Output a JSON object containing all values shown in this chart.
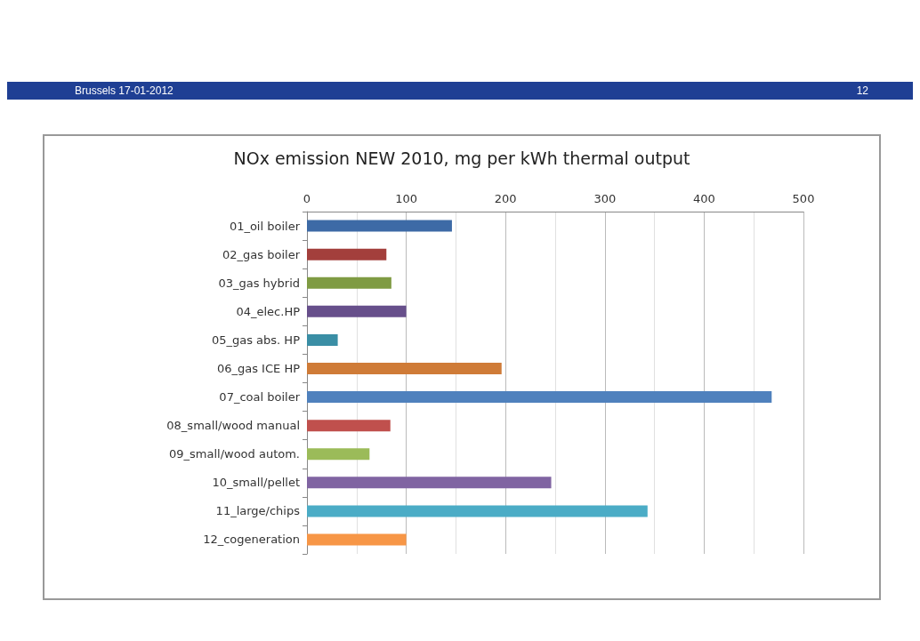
{
  "chart_data": {
    "type": "bar",
    "orientation": "horizontal",
    "title": "NOx emission NEW 2010, mg per kWh thermal output",
    "annotations": [
      "Brussels 17-01-2012",
      "12"
    ],
    "categories": [
      "01_oil boiler",
      "02_gas boiler",
      "03_gas hybrid",
      "04_elec.HP",
      "05_gas abs. HP",
      "06_gas ICE HP",
      "07_coal boiler",
      "08_small/wood manual",
      "09_small/wood autom.",
      "10_small/pellet",
      "11_large/chips",
      "12_cogeneration"
    ],
    "values": [
      146,
      80,
      85,
      100,
      31,
      196,
      468,
      84,
      63,
      246,
      343,
      100
    ],
    "colors": [
      "#3d6aa6",
      "#a33f3c",
      "#7f9b43",
      "#674f8b",
      "#3a8ea5",
      "#cf7b37",
      "#4f81bd",
      "#c0504d",
      "#9bbb59",
      "#8064a2",
      "#4bacc6",
      "#f79646"
    ],
    "xlim": [
      0,
      500
    ],
    "xticks": [
      0,
      100,
      200,
      300,
      400,
      500
    ],
    "grid": "x"
  }
}
